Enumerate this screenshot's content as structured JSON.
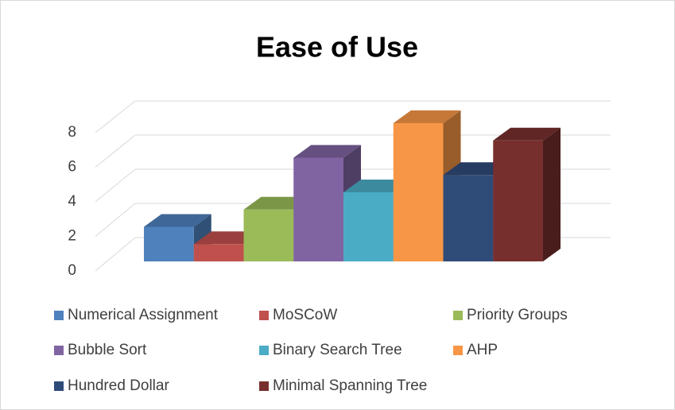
{
  "chart_data": {
    "type": "bar3d",
    "title": "Ease of Use",
    "categories": [
      ""
    ],
    "series": [
      {
        "name": "Numerical Assignment",
        "color": "#4f81bd",
        "values": [
          2
        ]
      },
      {
        "name": "MoSCoW",
        "color": "#c0504d",
        "values": [
          1
        ]
      },
      {
        "name": "Priority Groups",
        "color": "#9bbb59",
        "values": [
          3
        ]
      },
      {
        "name": "Bubble Sort",
        "color": "#8064a2",
        "values": [
          6
        ]
      },
      {
        "name": "Binary Search Tree",
        "color": "#4bacc6",
        "values": [
          4
        ]
      },
      {
        "name": "AHP",
        "color": "#f79646",
        "values": [
          8
        ]
      },
      {
        "name": "Hundred Dollar",
        "color": "#2f4b78",
        "values": [
          5
        ]
      },
      {
        "name": "Minimal Spanning Tree",
        "color": "#772f2e",
        "values": [
          7
        ]
      }
    ],
    "ylim": [
      0,
      8
    ],
    "yticks": [
      0,
      2,
      4,
      6,
      8
    ],
    "grid": true,
    "legend": "bottom"
  }
}
